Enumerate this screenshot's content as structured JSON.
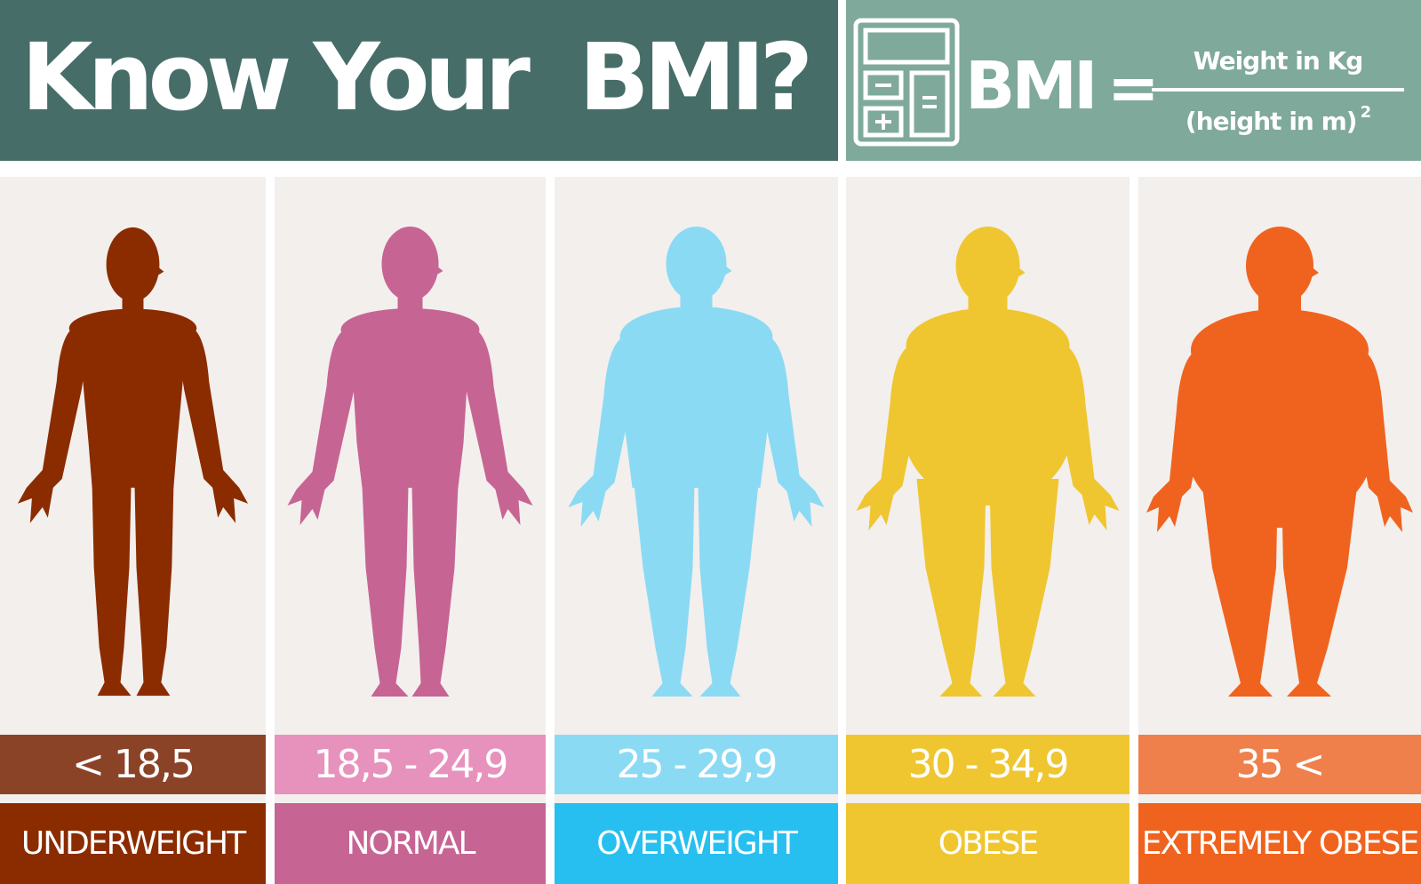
{
  "header": {
    "title": "Know Your  BMI?",
    "bmi_label": "BMI",
    "equals": "=",
    "formula_numerator": "Weight in Kg",
    "formula_denominator": "(height in m)",
    "formula_exponent": "2",
    "icon": "calculator-icon"
  },
  "categories": [
    {
      "range": "< 18,5",
      "label": "UNDERWEIGHT",
      "figure_color": "#8b2c00",
      "range_color": "#8b4328",
      "label_color": "#8b2c00"
    },
    {
      "range": "18,5 - 24,9",
      "label": "NORMAL",
      "figure_color": "#c66594",
      "range_color": "#e792bc",
      "label_color": "#c66594"
    },
    {
      "range": "25 - 29,9",
      "label": "OVERWEIGHT",
      "figure_color": "#8bdaf4",
      "range_color": "#8bdaf4",
      "label_color": "#27bff0"
    },
    {
      "range": "30 - 34,9",
      "label": "OBESE",
      "figure_color": "#efc62f",
      "range_color": "#efc62f",
      "label_color": "#efc62f"
    },
    {
      "range": "35 <",
      "label": "EXTREMELY OBESE",
      "figure_color": "#f0631e",
      "range_color": "#ef804b",
      "label_color": "#f0631e"
    }
  ]
}
